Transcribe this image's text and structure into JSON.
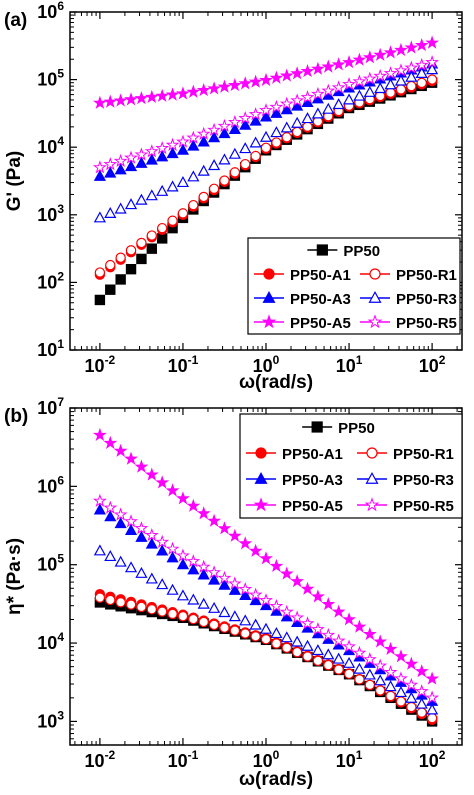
{
  "chart_data": [
    {
      "panel_label": "(a)",
      "type": "scatter",
      "ylabel": "G' (Pa)",
      "xlabel": "ω(rad/s)",
      "xscale": "log",
      "yscale": "log",
      "xlim": [
        0.01,
        100
      ],
      "ylim": [
        10,
        1000000
      ],
      "x_ticks": [
        {
          "value": 0.01,
          "base": "10",
          "exp": "-2"
        },
        {
          "value": 0.1,
          "base": "10",
          "exp": "-1"
        },
        {
          "value": 1,
          "base": "10",
          "exp": "0"
        },
        {
          "value": 10,
          "base": "10",
          "exp": "1"
        },
        {
          "value": 100,
          "base": "10",
          "exp": "2"
        }
      ],
      "y_ticks": [
        {
          "value": 10,
          "base": "10",
          "exp": "1"
        },
        {
          "value": 100,
          "base": "10",
          "exp": "2"
        },
        {
          "value": 1000,
          "base": "10",
          "exp": "3"
        },
        {
          "value": 10000,
          "base": "10",
          "exp": "4"
        },
        {
          "value": 100000,
          "base": "10",
          "exp": "5"
        },
        {
          "value": 1000000,
          "base": "10",
          "exp": "6"
        }
      ],
      "legend_position": "lower-right",
      "series": [
        {
          "name": "PP50",
          "marker": "square",
          "filled": true,
          "color": "#000000",
          "x": [
            0.01,
            0.1,
            1,
            10,
            100
          ],
          "y": [
            55,
            900,
            9000,
            38000,
            90000
          ]
        },
        {
          "name": "PP50-A1",
          "marker": "circle",
          "filled": true,
          "color": "#ff0000",
          "x": [
            0.01,
            0.1,
            1,
            10,
            100
          ],
          "y": [
            130,
            1000,
            9500,
            40000,
            95000
          ]
        },
        {
          "name": "PP50-R1",
          "marker": "circle",
          "filled": false,
          "color": "#ff0000",
          "x": [
            0.01,
            0.1,
            1,
            10,
            100
          ],
          "y": [
            140,
            1050,
            9800,
            41000,
            100000
          ]
        },
        {
          "name": "PP50-A3",
          "marker": "triangle",
          "filled": true,
          "color": "#0000ff",
          "x": [
            0.01,
            0.1,
            1,
            10,
            100
          ],
          "y": [
            3700,
            9000,
            28000,
            75000,
            170000
          ]
        },
        {
          "name": "PP50-R3",
          "marker": "triangle",
          "filled": false,
          "color": "#0000ff",
          "x": [
            0.01,
            0.1,
            1,
            10,
            100
          ],
          "y": [
            900,
            3000,
            14000,
            50000,
            140000
          ]
        },
        {
          "name": "PP50-A5",
          "marker": "star",
          "filled": true,
          "color": "#ff00ff",
          "x": [
            0.01,
            0.1,
            1,
            10,
            100
          ],
          "y": [
            45000,
            62000,
            98000,
            180000,
            350000
          ]
        },
        {
          "name": "PP50-R5",
          "marker": "star",
          "filled": false,
          "color": "#ff00ff",
          "x": [
            0.01,
            0.1,
            1,
            10,
            100
          ],
          "y": [
            5000,
            12000,
            35000,
            85000,
            180000
          ]
        }
      ]
    },
    {
      "panel_label": "(b)",
      "type": "scatter",
      "ylabel": "η* (Pa·s)",
      "xlabel": "ω(rad/s)",
      "xscale": "log",
      "yscale": "log",
      "xlim": [
        0.01,
        100
      ],
      "ylim": [
        500,
        10000000
      ],
      "x_ticks": [
        {
          "value": 0.01,
          "base": "10",
          "exp": "-2"
        },
        {
          "value": 0.1,
          "base": "10",
          "exp": "-1"
        },
        {
          "value": 1,
          "base": "10",
          "exp": "0"
        },
        {
          "value": 10,
          "base": "10",
          "exp": "1"
        },
        {
          "value": 100,
          "base": "10",
          "exp": "2"
        }
      ],
      "y_ticks": [
        {
          "value": 1000,
          "base": "10",
          "exp": "3"
        },
        {
          "value": 10000,
          "base": "10",
          "exp": "4"
        },
        {
          "value": 100000,
          "base": "10",
          "exp": "5"
        },
        {
          "value": 1000000,
          "base": "10",
          "exp": "6"
        },
        {
          "value": 10000000,
          "base": "10",
          "exp": "7"
        }
      ],
      "legend_position": "top-right",
      "series": [
        {
          "name": "PP50",
          "marker": "square",
          "filled": true,
          "color": "#000000",
          "x": [
            0.01,
            0.1,
            1,
            10,
            100
          ],
          "y": [
            33000,
            21000,
            11000,
            4000,
            1000
          ]
        },
        {
          "name": "PP50-A1",
          "marker": "circle",
          "filled": true,
          "color": "#ff0000",
          "x": [
            0.01,
            0.1,
            1,
            10,
            100
          ],
          "y": [
            42000,
            23000,
            11500,
            4100,
            1050
          ]
        },
        {
          "name": "PP50-R1",
          "marker": "circle",
          "filled": false,
          "color": "#ff0000",
          "x": [
            0.01,
            0.1,
            1,
            10,
            100
          ],
          "y": [
            38000,
            22000,
            11200,
            4050,
            1100
          ]
        },
        {
          "name": "PP50-A3",
          "marker": "triangle",
          "filled": true,
          "color": "#0000ff",
          "x": [
            0.01,
            0.1,
            1,
            10,
            100
          ],
          "y": [
            500000,
            100000,
            30000,
            8000,
            1800
          ]
        },
        {
          "name": "PP50-R3",
          "marker": "triangle",
          "filled": false,
          "color": "#0000ff",
          "x": [
            0.01,
            0.1,
            1,
            10,
            100
          ],
          "y": [
            150000,
            40000,
            15000,
            5500,
            1400
          ]
        },
        {
          "name": "PP50-A5",
          "marker": "star",
          "filled": true,
          "color": "#ff00ff",
          "x": [
            0.01,
            0.1,
            1,
            10,
            100
          ],
          "y": [
            4500000,
            700000,
            120000,
            20000,
            3500
          ]
        },
        {
          "name": "PP50-R5",
          "marker": "star",
          "filled": false,
          "color": "#ff00ff",
          "x": [
            0.01,
            0.1,
            1,
            10,
            100
          ],
          "y": [
            650000,
            130000,
            35000,
            9000,
            2000
          ]
        }
      ]
    }
  ]
}
